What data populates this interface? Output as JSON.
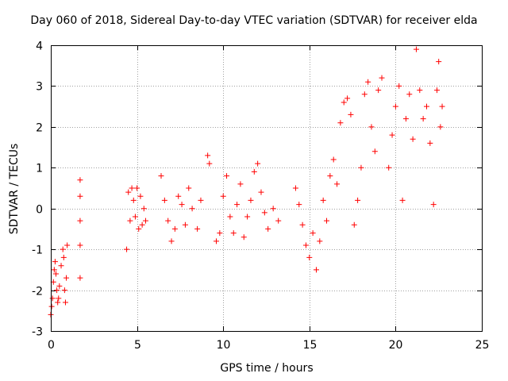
{
  "chart_data": {
    "type": "scatter",
    "title": "Day 060 of 2018, Sidereal Day-to-day VTEC variation (SDTVAR) for receiver elda",
    "xlabel": "GPS time / hours",
    "ylabel": "SDTVAR / TECUs",
    "xlim": [
      0,
      25
    ],
    "ylim": [
      -3,
      4
    ],
    "xticks": [
      "0",
      "5",
      "10",
      "15",
      "20",
      "25"
    ],
    "yticks": [
      "-3",
      "-2",
      "-1",
      "0",
      "1",
      "2",
      "3",
      "4"
    ],
    "grid": true,
    "marker": "+",
    "series": [
      {
        "name": "SDTVAR",
        "color": "#ff0000",
        "x": [
          0.0,
          0.05,
          0.1,
          0.15,
          0.2,
          0.25,
          0.3,
          0.35,
          0.4,
          0.45,
          0.5,
          0.6,
          0.7,
          0.75,
          0.8,
          0.85,
          0.9,
          0.95,
          1.7,
          1.7,
          1.7,
          1.7,
          1.7,
          4.4,
          4.6,
          4.8,
          5.0,
          5.2,
          5.4,
          4.5,
          4.7,
          4.9,
          5.1,
          5.3,
          5.5,
          6.4,
          6.6,
          6.8,
          7.0,
          7.2,
          7.4,
          7.6,
          7.8,
          8.0,
          8.2,
          8.5,
          8.7,
          9.1,
          9.2,
          9.6,
          9.8,
          10.0,
          10.2,
          10.4,
          10.6,
          10.8,
          11.0,
          11.2,
          11.4,
          11.6,
          11.8,
          12.0,
          12.2,
          12.4,
          12.6,
          12.9,
          13.2,
          14.2,
          14.4,
          14.6,
          14.8,
          15.0,
          15.2,
          15.4,
          15.6,
          15.8,
          16.0,
          16.2,
          16.4,
          16.6,
          16.8,
          17.0,
          17.2,
          17.4,
          17.6,
          17.8,
          18.0,
          18.2,
          18.4,
          18.6,
          18.8,
          19.0,
          19.2,
          19.6,
          19.8,
          20.0,
          20.2,
          20.4,
          20.6,
          20.8,
          21.0,
          21.2,
          21.4,
          21.6,
          21.8,
          22.0,
          22.2,
          22.4,
          22.5,
          22.6,
          22.7
        ],
        "y": [
          -2.6,
          -2.4,
          -2.2,
          -1.8,
          -1.5,
          -1.3,
          -1.6,
          -2.0,
          -2.3,
          -2.2,
          -1.9,
          -1.4,
          -1.0,
          -1.2,
          -2.0,
          -2.3,
          -1.7,
          -0.9,
          0.7,
          0.3,
          -0.3,
          -0.9,
          -1.7,
          -1.0,
          -0.3,
          0.2,
          0.5,
          0.3,
          0.0,
          0.4,
          0.5,
          -0.2,
          -0.5,
          -0.4,
          -0.3,
          0.8,
          0.2,
          -0.3,
          -0.8,
          -0.5,
          0.3,
          0.1,
          -0.4,
          0.5,
          0.0,
          -0.5,
          0.2,
          1.3,
          1.1,
          -0.8,
          -0.6,
          0.3,
          0.8,
          -0.2,
          -0.6,
          0.1,
          0.6,
          -0.7,
          -0.2,
          0.2,
          0.9,
          1.1,
          0.4,
          -0.1,
          -0.5,
          0.0,
          -0.3,
          0.5,
          0.1,
          -0.4,
          -0.9,
          -1.2,
          -0.6,
          -1.5,
          -0.8,
          0.2,
          -0.3,
          0.8,
          1.2,
          0.6,
          2.1,
          2.6,
          2.7,
          2.3,
          -0.4,
          0.2,
          1.0,
          2.8,
          3.1,
          2.0,
          1.4,
          2.9,
          3.2,
          1.0,
          1.8,
          2.5,
          3.0,
          0.2,
          2.2,
          2.8,
          1.7,
          3.9,
          2.9,
          2.2,
          2.5,
          1.6,
          0.1,
          2.9,
          3.6,
          2.0,
          2.5
        ]
      }
    ]
  }
}
